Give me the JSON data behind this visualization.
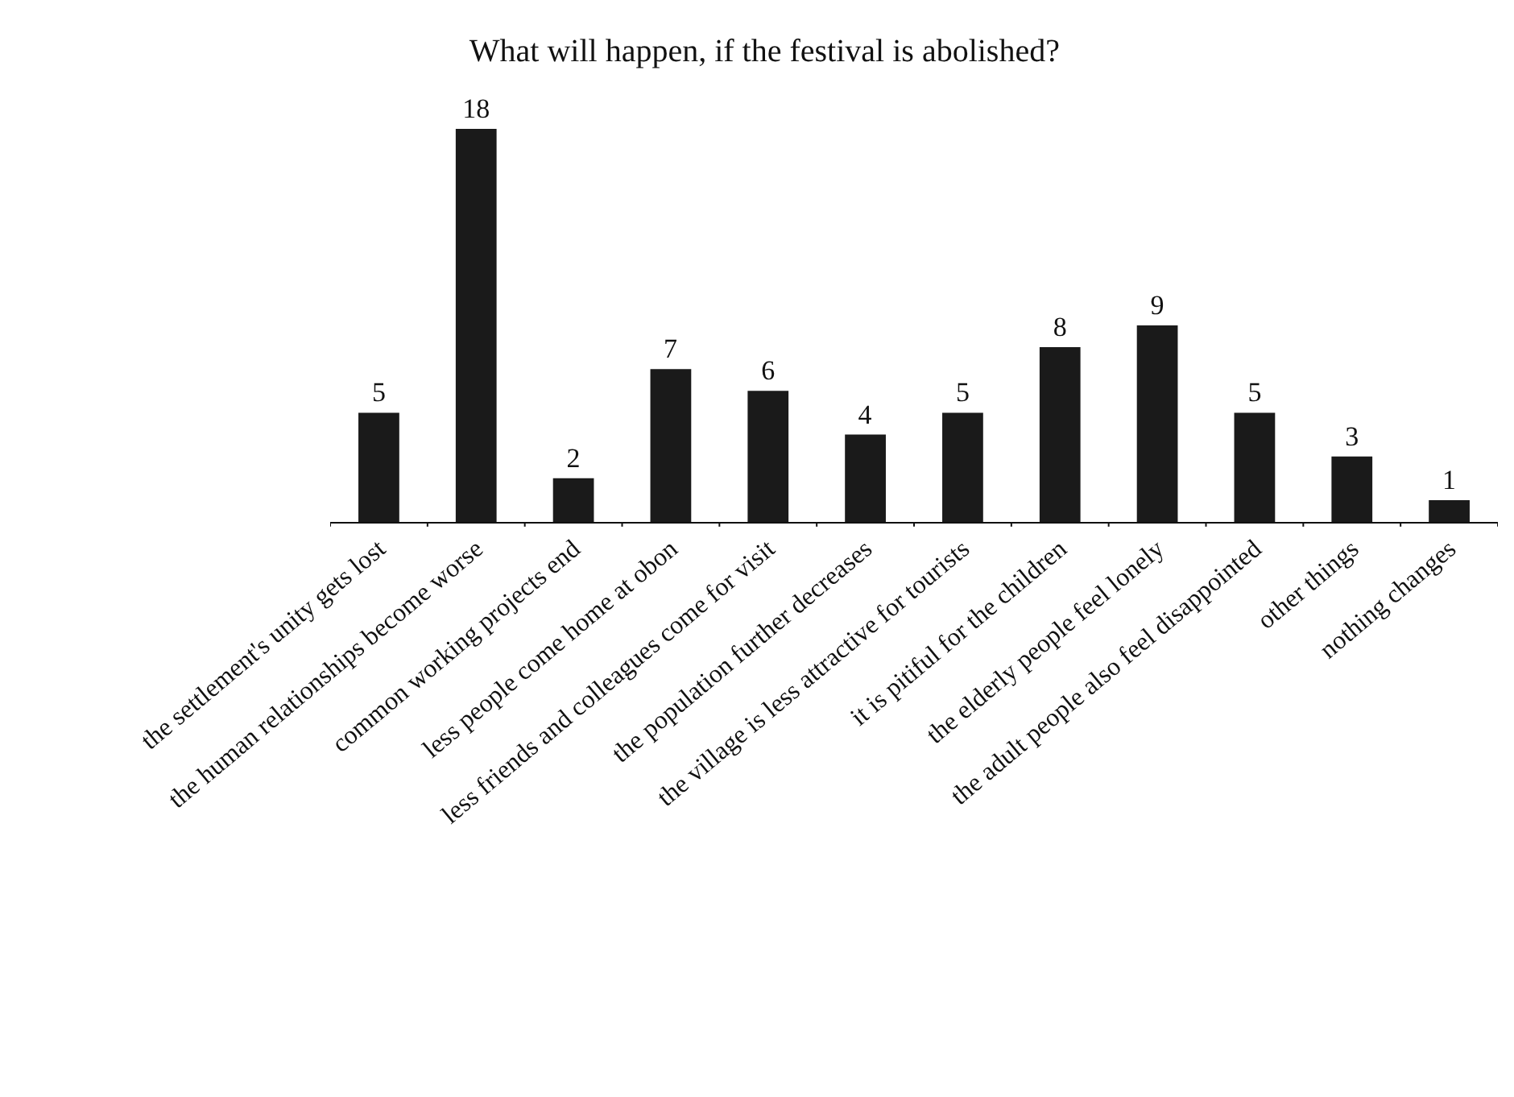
{
  "chart_data": {
    "type": "bar",
    "title": "What will happen, if the festival is abolished?",
    "categories": [
      "the settlement's unity gets lost",
      "the human relationships become worse",
      "common working projects end",
      "less people come home at obon",
      "less friends and colleagues come for visit",
      "the population further decreases",
      "the village is less attractive for tourists",
      "it is pitiful for the children",
      "the elderly people feel lonely",
      "the adult people also feel disappointed",
      "other things",
      "nothing changes"
    ],
    "values": [
      5,
      18,
      2,
      7,
      6,
      4,
      5,
      8,
      9,
      5,
      3,
      1
    ],
    "color": "#1a1a1a",
    "data_labels": true
  }
}
